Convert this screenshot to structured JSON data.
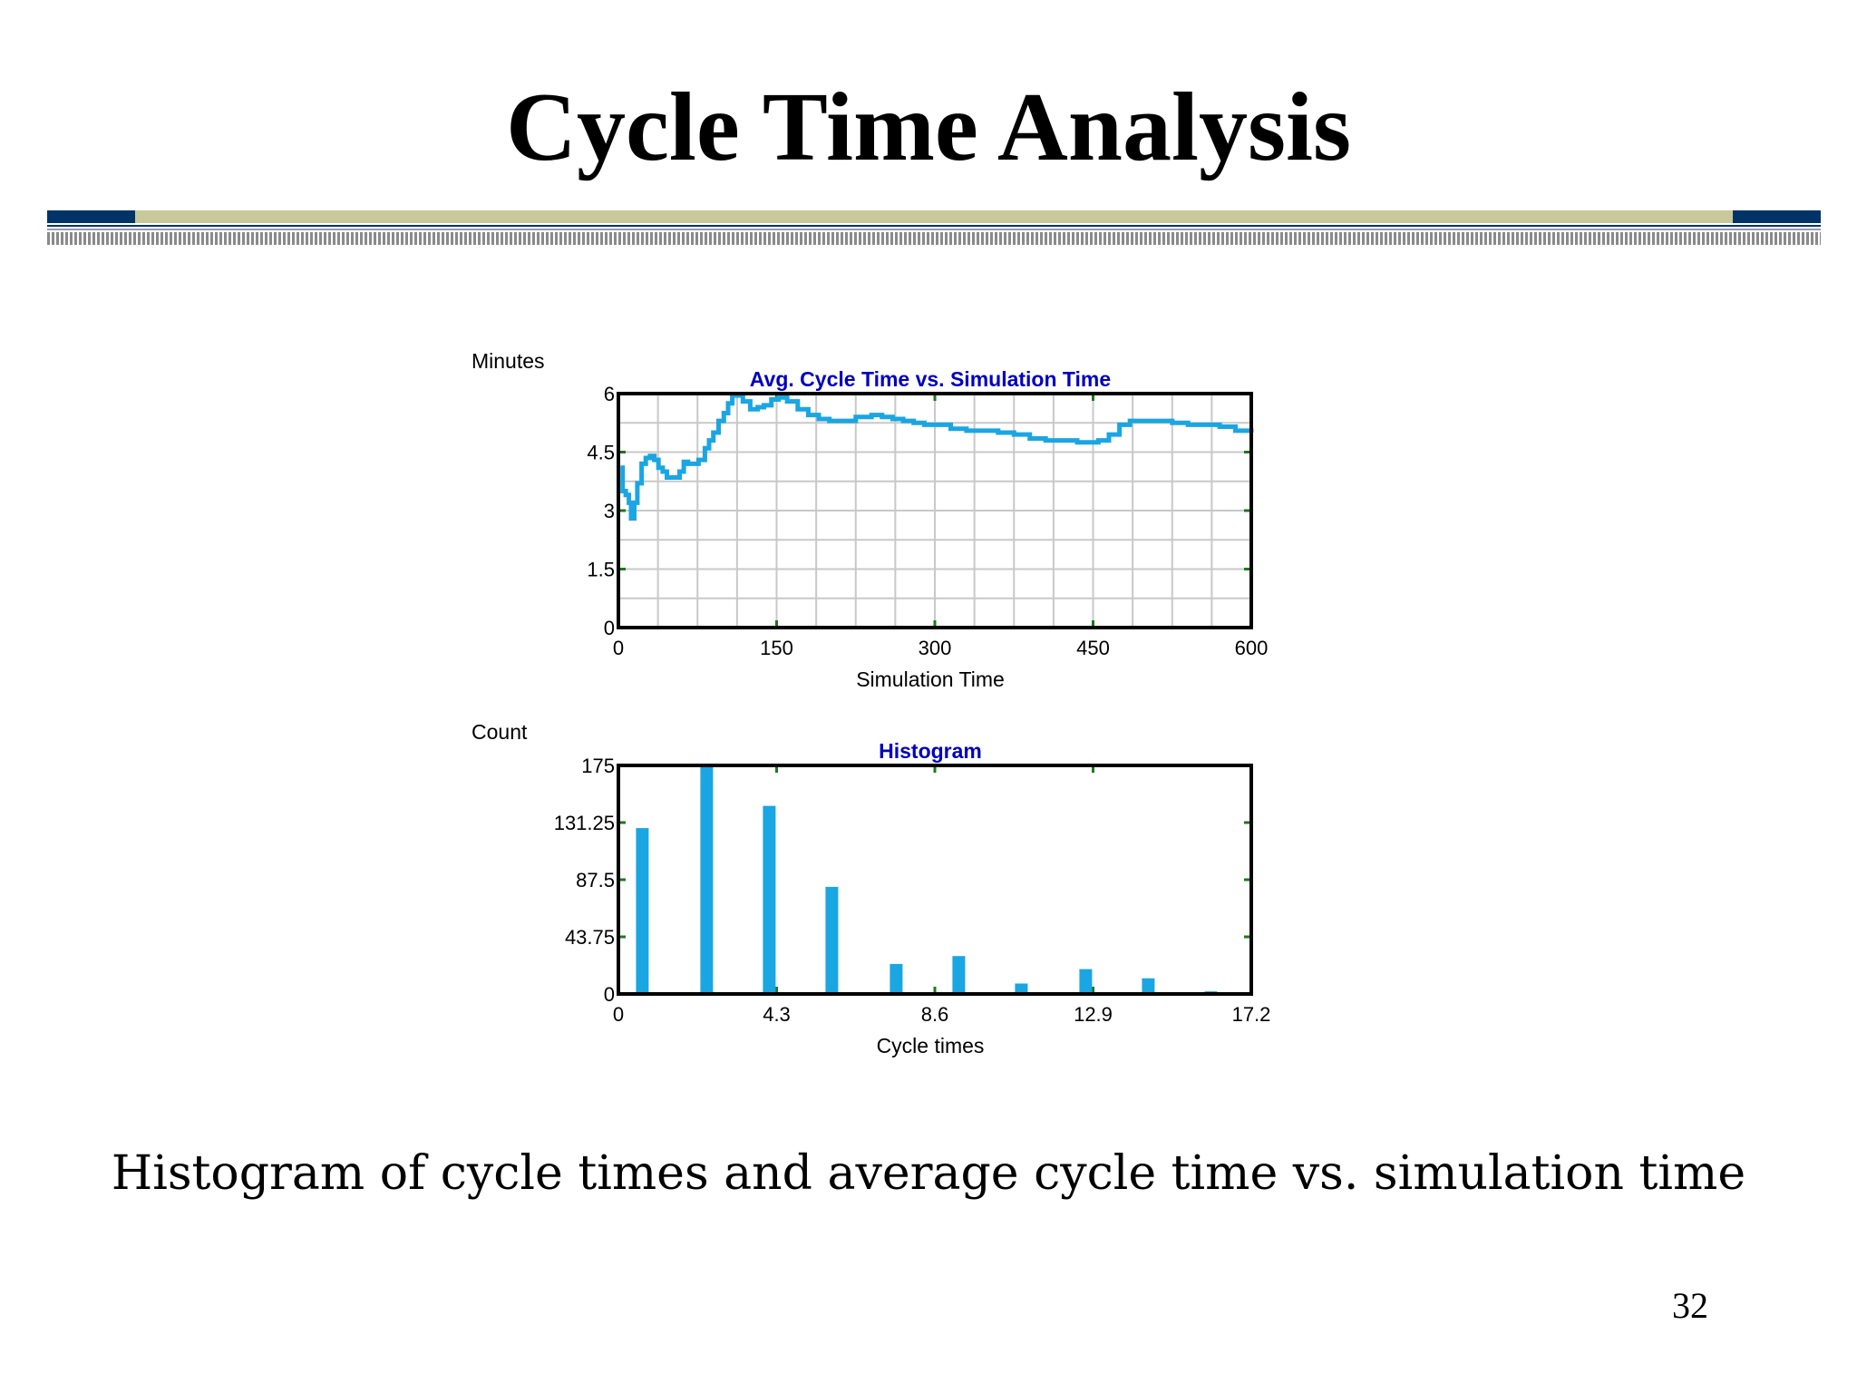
{
  "slide": {
    "title": "Cycle Time Analysis",
    "caption": "Histogram of cycle times and average cycle time vs. simulation time",
    "page_number": "32"
  },
  "colors": {
    "divider_navy": "#003366",
    "divider_khaki": "#c8c89a",
    "series": "#1aa6e2",
    "chart_title": "#0000c0",
    "grid": "#c8c8c8",
    "tick": "#1a7a1a"
  },
  "chart_data": [
    {
      "type": "line",
      "title": "Avg. Cycle Time vs. Simulation Time",
      "ylabel": "Minutes",
      "xlabel": "Simulation Time",
      "xlim": [
        0,
        600
      ],
      "ylim": [
        0,
        6
      ],
      "x_ticks": [
        "0",
        "150",
        "300",
        "450",
        "600"
      ],
      "y_ticks": [
        "0",
        "1.5",
        "3",
        "4.5",
        "6"
      ],
      "grid": true,
      "series": [
        {
          "x": [
            2,
            4,
            7,
            10,
            12,
            15,
            18,
            22,
            26,
            30,
            34,
            38,
            42,
            46,
            52,
            58,
            62,
            66,
            70,
            76,
            82,
            86,
            90,
            95,
            100,
            104,
            108,
            112,
            118,
            125,
            132,
            138,
            145,
            152,
            160,
            170,
            180,
            190,
            200,
            210,
            225,
            240,
            250,
            260,
            270,
            280,
            290,
            300,
            315,
            330,
            345,
            360,
            375,
            390,
            405,
            420,
            435,
            445,
            455,
            465,
            475,
            485,
            495,
            510,
            525,
            540,
            555,
            570,
            585,
            600
          ],
          "y": [
            4.1,
            3.5,
            3.4,
            3.2,
            2.8,
            3.2,
            3.7,
            4.2,
            4.35,
            4.4,
            4.3,
            4.1,
            4.0,
            3.85,
            3.85,
            4.0,
            4.25,
            4.2,
            4.2,
            4.3,
            4.6,
            4.8,
            5.0,
            5.3,
            5.5,
            5.75,
            5.95,
            5.95,
            5.8,
            5.6,
            5.65,
            5.7,
            5.85,
            5.9,
            5.8,
            5.6,
            5.45,
            5.35,
            5.3,
            5.3,
            5.4,
            5.45,
            5.4,
            5.35,
            5.3,
            5.25,
            5.2,
            5.2,
            5.1,
            5.05,
            5.05,
            5.0,
            4.95,
            4.85,
            4.8,
            4.8,
            4.75,
            4.75,
            4.8,
            4.95,
            5.2,
            5.3,
            5.3,
            5.3,
            5.25,
            5.2,
            5.2,
            5.15,
            5.05,
            5.0
          ]
        }
      ]
    },
    {
      "type": "bar",
      "title": "Histogram",
      "ylabel": "Count",
      "xlabel": "Cycle times",
      "xlim": [
        0,
        17.2
      ],
      "ylim": [
        0,
        175
      ],
      "x_ticks": [
        "0",
        "4.3",
        "8.6",
        "12.9",
        "17.2"
      ],
      "y_ticks": [
        "0",
        "43.75",
        "87.5",
        "131.25",
        "175"
      ],
      "grid": false,
      "bin_centers": [
        0.65,
        2.4,
        4.1,
        5.8,
        7.55,
        9.25,
        10.95,
        12.7,
        14.4,
        16.1
      ],
      "values": [
        127,
        175,
        144,
        82,
        23,
        29,
        8,
        19,
        12,
        2
      ]
    }
  ]
}
